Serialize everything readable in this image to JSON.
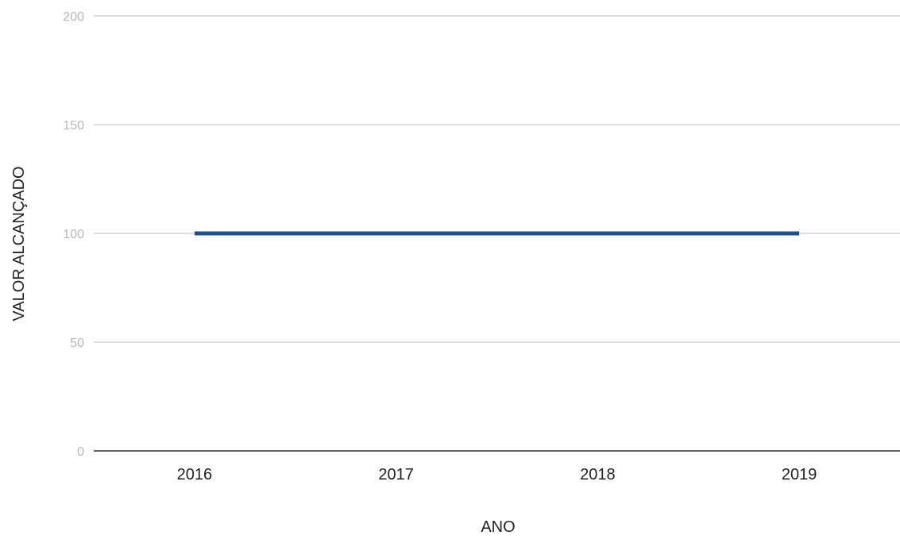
{
  "chart_data": {
    "type": "line",
    "title": "",
    "xlabel": "ANO",
    "ylabel": "VALOR ALCANÇADO",
    "categories": [
      "2016",
      "2017",
      "2018",
      "2019"
    ],
    "series": [
      {
        "values": [
          100,
          100,
          100,
          100
        ],
        "color": "#1f4e8c"
      }
    ],
    "ylim": [
      0,
      200
    ],
    "yticks": [
      0,
      50,
      100,
      150,
      200
    ],
    "grid": true,
    "legend": "none"
  }
}
